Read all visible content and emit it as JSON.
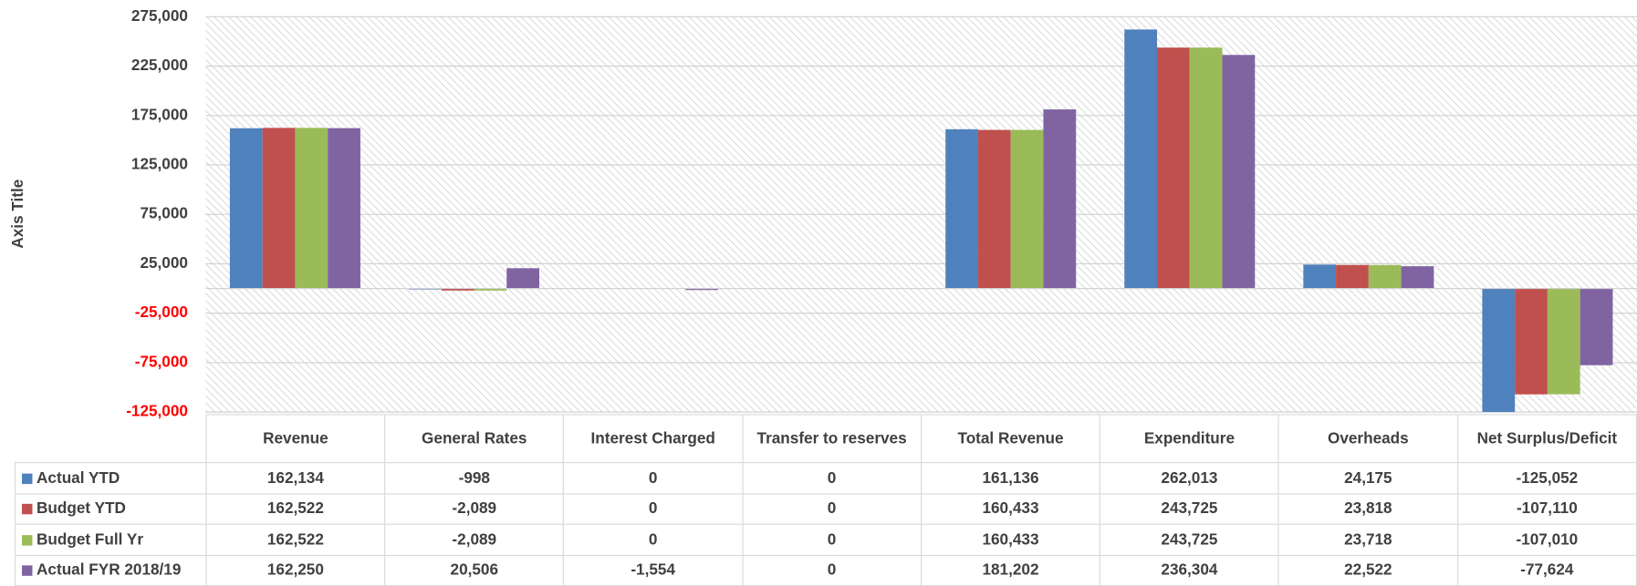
{
  "chart_data": {
    "type": "bar",
    "y_axis_title": "Axis Title",
    "categories": [
      "Revenue",
      "General Rates",
      "Interest Charged",
      "Transfer to reserves",
      "Total Revenue",
      "Expenditure",
      "Overheads",
      "Net Surplus/Deficit"
    ],
    "series": [
      {
        "name": "Actual YTD",
        "color": "#4f81bd",
        "values": [
          162134,
          -998,
          0,
          0,
          161136,
          262013,
          24175,
          -125052
        ],
        "value_labels": [
          "162,134",
          "-998",
          "0",
          "0",
          "161,136",
          "262,013",
          "24,175",
          "-125,052"
        ]
      },
      {
        "name": "Budget YTD",
        "color": "#c0504d",
        "values": [
          162522,
          -2089,
          0,
          0,
          160433,
          243725,
          23818,
          -107110
        ],
        "value_labels": [
          "162,522",
          "-2,089",
          "0",
          "0",
          "160,433",
          "243,725",
          "23,818",
          "-107,110"
        ]
      },
      {
        "name": "Budget Full Yr",
        "color": "#9bbb59",
        "values": [
          162522,
          -2089,
          0,
          0,
          160433,
          243725,
          23718,
          -107010
        ],
        "value_labels": [
          "162,522",
          "-2,089",
          "0",
          "0",
          "160,433",
          "243,725",
          "23,718",
          "-107,010"
        ]
      },
      {
        "name": "Actual FYR 2018/19",
        "color": "#8064a2",
        "values": [
          162250,
          20506,
          -1554,
          0,
          181202,
          236304,
          22522,
          -77624
        ],
        "value_labels": [
          "162,250",
          "20,506",
          "-1,554",
          "0",
          "181,202",
          "236,304",
          "22,522",
          "-77,624"
        ]
      }
    ],
    "ylim": [
      -125000,
      275000
    ],
    "yticks": [
      {
        "value": 275000,
        "label": "275,000"
      },
      {
        "value": 225000,
        "label": "225,000"
      },
      {
        "value": 175000,
        "label": "175,000"
      },
      {
        "value": 125000,
        "label": "125,000"
      },
      {
        "value": 75000,
        "label": "75,000"
      },
      {
        "value": 25000,
        "label": "25,000"
      },
      {
        "value": -25000,
        "label": "-25,000"
      },
      {
        "value": -75000,
        "label": "-75,000"
      },
      {
        "value": -125000,
        "label": "-125,000"
      }
    ],
    "negative_tick_color": "#ff0000",
    "grid": true,
    "legend": "data-table"
  }
}
